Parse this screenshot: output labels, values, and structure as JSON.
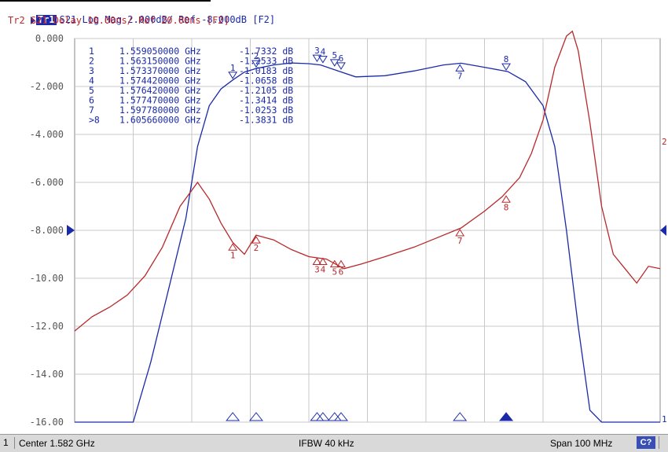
{
  "header": {
    "trace1_badge": "Tr1",
    "trace1_text": "S21 Log Mag 2.000dB/ Ref -8.000dB [F2]",
    "trace2_text": "Tr2 S21 Delay 10.00ns/ Ref 20.00ns [F2]"
  },
  "status": {
    "channel": "1",
    "center": "Center 1.582 GHz",
    "ifbw": "IFBW 40 kHz",
    "span": "Span 100 MHz",
    "badge": "C?"
  },
  "colors": {
    "trace1": "#1a2aa8",
    "trace2": "#b8282a",
    "grid": "#c8c8c8",
    "background": "#ffffff"
  },
  "chart_data": {
    "type": "line",
    "x_range_ghz": [
      1.532,
      1.632
    ],
    "ylim": [
      -16,
      0
    ],
    "y_tick_labels": [
      "0.000",
      "-2.000",
      "-4.000",
      "-6.000",
      "-8.000",
      "-10.00",
      "-12.00",
      "-14.00",
      "-16.00"
    ],
    "y_ticks": [
      0,
      -2,
      -4,
      -6,
      -8,
      -10,
      -12,
      -14,
      -16
    ],
    "grid": true,
    "marker_table": [
      {
        "id": "1",
        "freq": "1.559050000 GHz",
        "value": "-1.7332 dB"
      },
      {
        "id": "2",
        "freq": "1.563150000 GHz",
        "value": "-1.2533 dB"
      },
      {
        "id": "3",
        "freq": "1.573370000 GHz",
        "value": "-1.0183 dB"
      },
      {
        "id": "4",
        "freq": "1.574420000 GHz",
        "value": "-1.0658 dB"
      },
      {
        "id": "5",
        "freq": "1.576420000 GHz",
        "value": "-1.2105 dB"
      },
      {
        "id": "6",
        "freq": "1.577470000 GHz",
        "value": "-1.3414 dB"
      },
      {
        "id": "7",
        "freq": "1.597780000 GHz",
        "value": "-1.0253 dB"
      },
      {
        "id": ">8",
        "freq": "1.605660000 GHz",
        "value": "-1.3831 dB"
      }
    ],
    "series": [
      {
        "trace": "Tr1",
        "x": [
          1.532,
          1.542,
          1.545,
          1.548,
          1.551,
          1.553,
          1.555,
          1.557,
          1.559,
          1.561,
          1.563,
          1.566,
          1.569,
          1.572,
          1.574,
          1.577,
          1.58,
          1.585,
          1.59,
          1.595,
          1.598,
          1.602,
          1.606,
          1.609,
          1.612,
          1.614,
          1.616,
          1.618,
          1.62,
          1.622,
          1.632
        ],
        "y": [
          -16,
          -16,
          -13.5,
          -10.5,
          -7.5,
          -4.5,
          -2.8,
          -2.1,
          -1.73,
          -1.4,
          -1.25,
          -1.1,
          -1.02,
          -1.05,
          -1.1,
          -1.35,
          -1.6,
          -1.55,
          -1.35,
          -1.1,
          -1.03,
          -1.2,
          -1.38,
          -1.8,
          -2.8,
          -4.5,
          -8.0,
          -12.0,
          -15.5,
          -16,
          -16
        ]
      },
      {
        "trace": "Tr2",
        "x": [
          1.532,
          1.535,
          1.538,
          1.541,
          1.544,
          1.547,
          1.55,
          1.553,
          1.555,
          1.557,
          1.559,
          1.561,
          1.563,
          1.566,
          1.569,
          1.572,
          1.575,
          1.578,
          1.581,
          1.585,
          1.59,
          1.594,
          1.598,
          1.602,
          1.605,
          1.608,
          1.61,
          1.612,
          1.614,
          1.616,
          1.617,
          1.618,
          1.62,
          1.622,
          1.624,
          1.626,
          1.628,
          1.63,
          1.632
        ],
        "y": [
          -12.2,
          -11.6,
          -11.2,
          -10.7,
          -9.9,
          -8.7,
          -7.0,
          -6.0,
          -6.7,
          -7.7,
          -8.5,
          -9.0,
          -8.2,
          -8.4,
          -8.8,
          -9.1,
          -9.2,
          -9.6,
          -9.4,
          -9.1,
          -8.7,
          -8.3,
          -7.9,
          -7.2,
          -6.6,
          -5.8,
          -4.8,
          -3.4,
          -1.2,
          0.1,
          0.3,
          -0.5,
          -3.5,
          -7.0,
          -9.0,
          -9.6,
          -10.2,
          -9.5,
          -9.6
        ]
      }
    ],
    "trace_markers": [
      {
        "id": "1",
        "x": 1.559,
        "y1": -1.73,
        "y2": -8.5
      },
      {
        "id": "2",
        "x": 1.563,
        "y1": -1.25,
        "y2": -8.2
      },
      {
        "id": "3",
        "x": 1.5734,
        "y1": -1.02,
        "y2": -9.1
      },
      {
        "id": "4",
        "x": 1.5744,
        "y1": -1.07,
        "y2": -9.1
      },
      {
        "id": "5",
        "x": 1.5764,
        "y1": -1.21,
        "y2": -9.2
      },
      {
        "id": "6",
        "x": 1.5775,
        "y1": -1.34,
        "y2": -9.2
      },
      {
        "id": "7",
        "x": 1.5978,
        "y1": -1.03,
        "y2": -7.9
      },
      {
        "id": "8",
        "x": 1.6057,
        "y1": -1.38,
        "y2": -6.5
      }
    ]
  }
}
